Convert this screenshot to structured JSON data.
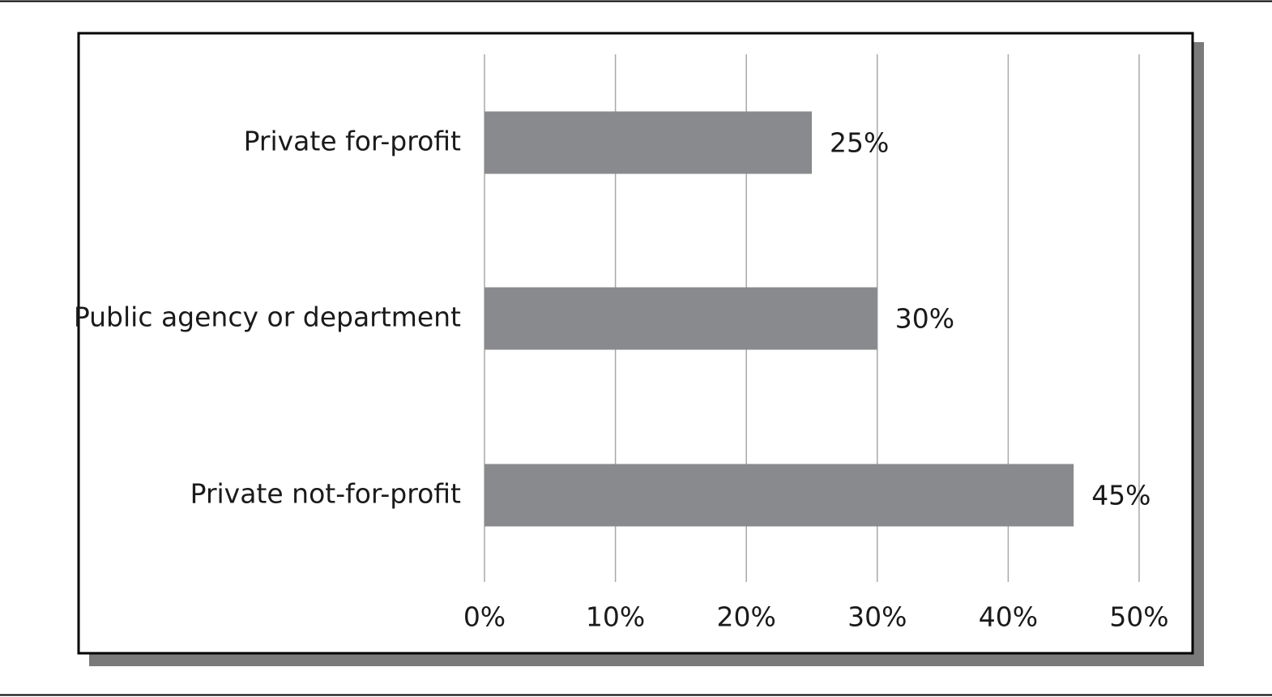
{
  "chart_data": {
    "type": "bar",
    "orientation": "horizontal",
    "categories": [
      "Private for-profit",
      "Public agency or department",
      "Private not-for-profit"
    ],
    "values": [
      25,
      30,
      45
    ],
    "value_labels": [
      "25%",
      "30%",
      "45%"
    ],
    "color": "#898a8d",
    "xlim": [
      0,
      50
    ],
    "xticks": [
      {
        "value": 0,
        "label": "0%"
      },
      {
        "value": 10,
        "label": "10%"
      },
      {
        "value": 20,
        "label": "20%"
      },
      {
        "value": 30,
        "label": "30%"
      },
      {
        "value": 40,
        "label": "40%"
      },
      {
        "value": 50,
        "label": "50%"
      }
    ],
    "grid": true
  }
}
